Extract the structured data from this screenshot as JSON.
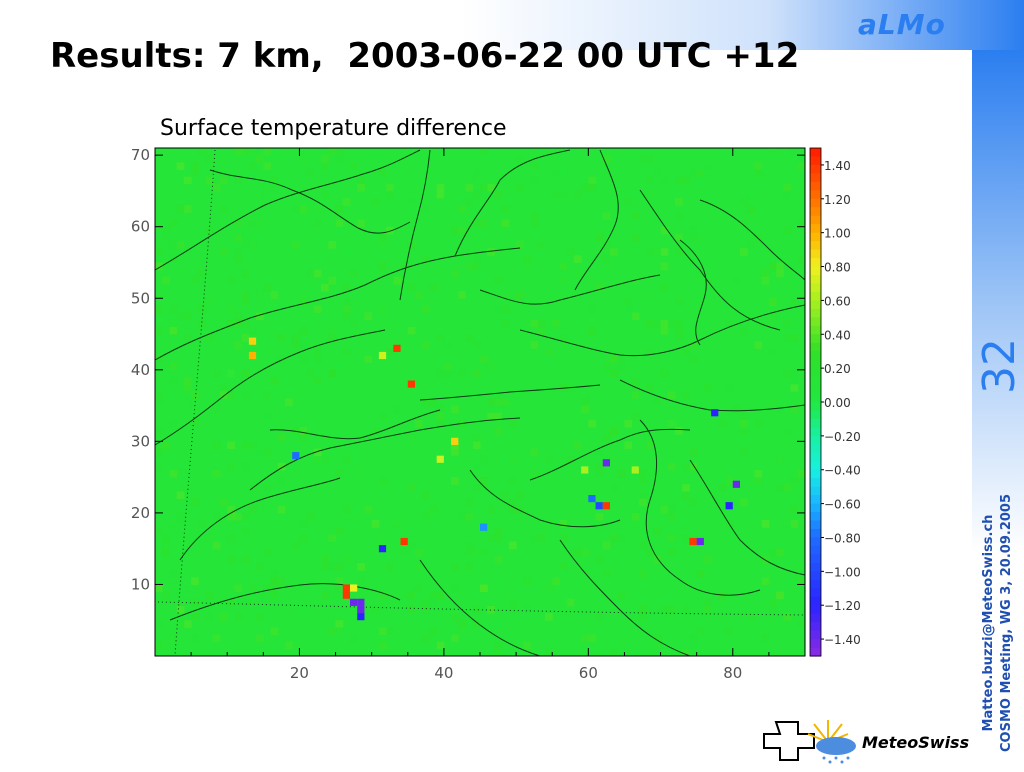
{
  "slide": {
    "logo": "aLMo",
    "title": "Results: 7 km,  2003-06-22 00 UTC +12",
    "page_number": "32",
    "footer_email": "Matteo.buzzi@MeteoSwiss.ch",
    "footer_meeting": "COSMO Meeting, WG 3, 20.09.2005",
    "org_logo_text": "MeteoSwiss",
    "colors": {
      "accent": "#2b7ef0",
      "field": "#22e038"
    }
  },
  "chart_data": {
    "type": "heatmap",
    "title": "Surface temperature difference",
    "x_ticks": [
      20,
      40,
      60,
      80
    ],
    "y_ticks": [
      10,
      20,
      30,
      40,
      50,
      60,
      70
    ],
    "xlim": [
      0,
      90
    ],
    "ylim": [
      0,
      71
    ],
    "colorbar": {
      "min": -1.5,
      "max": 1.5,
      "ticks": [
        "1.40",
        "1.20",
        "1.00",
        "0.80",
        "0.60",
        "0.40",
        "0.20",
        "0.00",
        "−0.20",
        "−0.40",
        "−0.60",
        "−0.80",
        "−1.00",
        "−1.20",
        "−1.40"
      ]
    },
    "background_value": 0.1,
    "anomalies": [
      {
        "x": 13.5,
        "y": 44.0,
        "value": 0.9
      },
      {
        "x": 13.5,
        "y": 42.0,
        "value": 1.0
      },
      {
        "x": 33.5,
        "y": 43.0,
        "value": 1.4
      },
      {
        "x": 31.5,
        "y": 42.0,
        "value": 0.7
      },
      {
        "x": 35.5,
        "y": 38.0,
        "value": 1.4
      },
      {
        "x": 41.5,
        "y": 30.0,
        "value": 0.9
      },
      {
        "x": 39.5,
        "y": 27.5,
        "value": 0.7
      },
      {
        "x": 19.5,
        "y": 28.0,
        "value": -0.8
      },
      {
        "x": 34.5,
        "y": 16.0,
        "value": 1.4
      },
      {
        "x": 31.5,
        "y": 15.0,
        "value": -1.2
      },
      {
        "x": 26.5,
        "y": 9.5,
        "value": 1.4
      },
      {
        "x": 26.5,
        "y": 8.5,
        "value": 1.4
      },
      {
        "x": 27.5,
        "y": 7.5,
        "value": -1.4
      },
      {
        "x": 28.5,
        "y": 7.5,
        "value": -1.4
      },
      {
        "x": 28.5,
        "y": 6.5,
        "value": -1.4
      },
      {
        "x": 28.5,
        "y": 5.5,
        "value": -1.2
      },
      {
        "x": 27.5,
        "y": 9.5,
        "value": 0.8
      },
      {
        "x": 62.5,
        "y": 27.0,
        "value": -1.4
      },
      {
        "x": 60.5,
        "y": 22.0,
        "value": -0.8
      },
      {
        "x": 61.5,
        "y": 21.0,
        "value": -1.0
      },
      {
        "x": 62.5,
        "y": 21.0,
        "value": 1.4
      },
      {
        "x": 77.5,
        "y": 34.0,
        "value": -1.2
      },
      {
        "x": 80.5,
        "y": 24.0,
        "value": -1.4
      },
      {
        "x": 79.5,
        "y": 21.0,
        "value": -1.2
      },
      {
        "x": 74.5,
        "y": 16.0,
        "value": 1.4
      },
      {
        "x": 75.5,
        "y": 16.0,
        "value": -1.4
      },
      {
        "x": 45.5,
        "y": 18.0,
        "value": -0.7
      },
      {
        "x": 59.5,
        "y": 26.0,
        "value": 0.6
      },
      {
        "x": 66.5,
        "y": 26.0,
        "value": 0.6
      }
    ]
  }
}
